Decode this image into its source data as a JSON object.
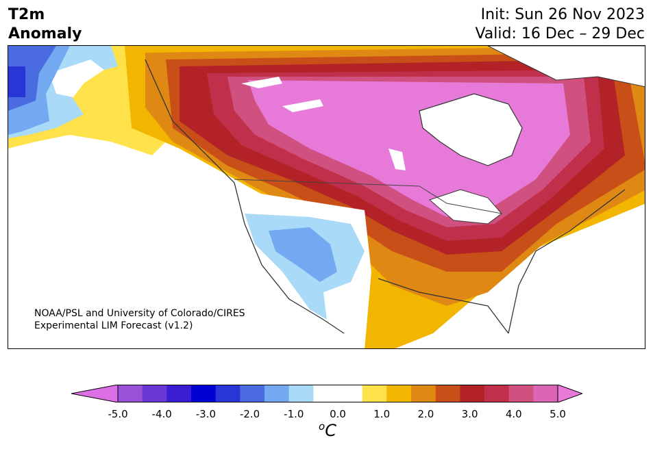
{
  "title": {
    "line1": "T2m",
    "line2": "Anomaly"
  },
  "dates": {
    "init": "Init: Sun 26 Nov 2023",
    "valid": "Valid: 16 Dec – 29 Dec"
  },
  "credit": {
    "line1": "NOAA/PSL and University of Colorado/CIRES",
    "line2": "Experimental LIM Forecast (v1.2)"
  },
  "colorbar": {
    "ticks": [
      "-5.0",
      "-4.0",
      "-3.0",
      "-2.0",
      "-1.0",
      "0.0",
      "1.0",
      "2.0",
      "3.0",
      "4.0",
      "5.0"
    ],
    "colors": [
      "#dc6fe6",
      "#9b50d8",
      "#6b36d6",
      "#3b1dd2",
      "#0000d4",
      "#2836d8",
      "#4a6ce0",
      "#73a9f0",
      "#a9daf8",
      "#ffffff",
      "#ffffff",
      "#ffe24a",
      "#f2b500",
      "#df8814",
      "#c85018",
      "#b22226",
      "#c0304a",
      "#d0507f",
      "#db65b4",
      "#e779d9"
    ],
    "units_base": "C",
    "units_sup": "o"
  },
  "map_colors": {
    "magenta": "#e779d9",
    "pink": "#d0507f",
    "crimson": "#c0304a",
    "red": "#b22226",
    "rust": "#c85018",
    "orange": "#df8814",
    "gold": "#f2b500",
    "yellow": "#ffe24a",
    "lightblue": "#a9daf8",
    "blue": "#73a9f0",
    "royal": "#4a6ce0",
    "deep": "#2836d8"
  }
}
